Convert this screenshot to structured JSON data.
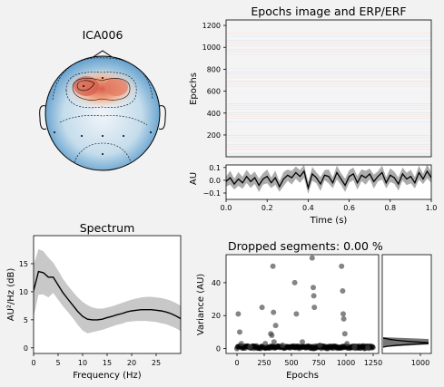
{
  "background": "#f2f2f2",
  "colors": {
    "mean_line": "#000000",
    "ci_band": "#9e9e9e",
    "scatter": "#555555",
    "axis": "#000000"
  },
  "topomap": {
    "title": "ICA006",
    "colormap": "RdBu_r"
  },
  "chart_data": [
    {
      "type": "heatmap",
      "panel": "epochs_image",
      "title": "Epochs image and ERP/ERF",
      "ylabel": "Epochs",
      "yticks": [
        200,
        400,
        600,
        800,
        1000,
        1200
      ],
      "ylim": [
        1,
        1250
      ]
    },
    {
      "type": "line",
      "panel": "erp",
      "xlabel": "Time (s)",
      "ylabel": "AU",
      "xlim": [
        0.0,
        1.0
      ],
      "xticks": [
        "0.0",
        "0.2",
        "0.4",
        "0.6",
        "0.8",
        "1.0"
      ],
      "ylim": [
        -0.15,
        0.12
      ],
      "yticks": [
        "0.1",
        "0.0",
        "−0.1"
      ],
      "ytick_values": [
        0.1,
        0.0,
        -0.1
      ],
      "x": [
        0.0,
        0.02,
        0.04,
        0.06,
        0.08,
        0.1,
        0.12,
        0.14,
        0.16,
        0.18,
        0.2,
        0.22,
        0.24,
        0.26,
        0.28,
        0.3,
        0.32,
        0.34,
        0.36,
        0.38,
        0.4,
        0.42,
        0.44,
        0.46,
        0.48,
        0.5,
        0.52,
        0.54,
        0.56,
        0.58,
        0.6,
        0.62,
        0.64,
        0.66,
        0.68,
        0.7,
        0.72,
        0.74,
        0.76,
        0.78,
        0.8,
        0.82,
        0.84,
        0.86,
        0.88,
        0.9,
        0.92,
        0.94,
        0.96,
        0.98,
        1.0
      ],
      "mean": [
        -0.01,
        0.02,
        -0.03,
        0.01,
        -0.02,
        0.03,
        -0.01,
        0.02,
        -0.04,
        0.01,
        0.03,
        -0.02,
        0.02,
        -0.05,
        0.01,
        0.04,
        0.02,
        0.06,
        0.03,
        0.07,
        -0.06,
        0.05,
        0.02,
        -0.03,
        0.04,
        0.03,
        -0.02,
        0.06,
        0.01,
        -0.04,
        0.03,
        0.05,
        -0.02,
        0.04,
        0.02,
        0.05,
        -0.01,
        0.03,
        0.06,
        -0.02,
        0.04,
        0.02,
        -0.03,
        0.05,
        0.01,
        0.03,
        -0.02,
        0.06,
        0.01,
        0.07,
        0.02
      ],
      "ci_halfwidth": 0.055
    },
    {
      "type": "area",
      "panel": "spectrum",
      "title": "Spectrum",
      "xlabel": "Frequency (Hz)",
      "ylabel": "AU²/Hz (dB)",
      "xlim": [
        0,
        30
      ],
      "xticks": [
        0,
        5,
        10,
        15,
        20,
        25
      ],
      "ylim": [
        -1,
        20
      ],
      "yticks": [
        0,
        5,
        10,
        15
      ],
      "x": [
        0,
        1,
        2,
        3,
        4,
        5,
        6,
        7,
        8,
        9,
        10,
        11,
        12,
        13,
        14,
        15,
        16,
        17,
        18,
        19,
        20,
        21,
        22,
        23,
        24,
        25,
        26,
        27,
        28,
        29,
        30
      ],
      "mean": [
        10.2,
        13.6,
        13.4,
        12.6,
        12.6,
        11.2,
        9.8,
        8.7,
        7.6,
        6.5,
        5.6,
        5.1,
        5.0,
        5.0,
        5.1,
        5.4,
        5.6,
        5.9,
        6.1,
        6.4,
        6.6,
        6.7,
        6.8,
        6.8,
        6.8,
        6.7,
        6.6,
        6.4,
        6.1,
        5.7,
        5.2
      ],
      "upper": [
        14.8,
        17.6,
        17.2,
        16.1,
        15.2,
        13.8,
        12.3,
        11.1,
        10.0,
        9.0,
        8.2,
        7.6,
        7.2,
        7.0,
        7.0,
        7.2,
        7.4,
        7.7,
        8.0,
        8.3,
        8.6,
        8.8,
        9.0,
        9.1,
        9.1,
        9.0,
        8.9,
        8.7,
        8.4,
        8.0,
        7.5
      ],
      "lower": [
        5.5,
        9.5,
        9.5,
        9.0,
        9.8,
        8.6,
        7.4,
        6.4,
        5.3,
        4.1,
        3.1,
        2.6,
        2.8,
        3.0,
        3.2,
        3.5,
        3.8,
        4.1,
        4.3,
        4.6,
        4.7,
        4.8,
        4.8,
        4.8,
        4.7,
        4.6,
        4.4,
        4.2,
        3.9,
        3.5,
        3.0
      ]
    },
    {
      "type": "scatter",
      "panel": "dropped_segments",
      "title": "Dropped segments: 0.00 %",
      "xlabel": "Epochs",
      "ylabel": "Variance (AU)",
      "xlim": [
        -100,
        1300
      ],
      "xticks": [
        0,
        250,
        500,
        750,
        1000,
        1250
      ],
      "ylim": [
        -3,
        57
      ],
      "yticks": [
        0,
        20,
        40
      ],
      "outliers": [
        [
          12,
          21
        ],
        [
          25,
          10
        ],
        [
          40,
          3
        ],
        [
          120,
          1
        ],
        [
          230,
          25
        ],
        [
          260,
          3
        ],
        [
          310,
          9
        ],
        [
          320,
          8
        ],
        [
          330,
          50
        ],
        [
          335,
          22
        ],
        [
          340,
          4
        ],
        [
          355,
          14
        ],
        [
          420,
          2
        ],
        [
          530,
          40
        ],
        [
          545,
          21
        ],
        [
          600,
          4
        ],
        [
          690,
          55
        ],
        [
          700,
          37
        ],
        [
          705,
          32
        ],
        [
          710,
          25
        ],
        [
          760,
          2
        ],
        [
          960,
          50
        ],
        [
          970,
          35
        ],
        [
          975,
          21
        ],
        [
          980,
          18
        ],
        [
          990,
          9
        ],
        [
          1010,
          3
        ],
        [
          1080,
          1
        ],
        [
          1200,
          0.5
        ]
      ],
      "baseline_n": 1250
    },
    {
      "type": "area",
      "panel": "variance_histogram",
      "xticks": [
        1000
      ],
      "xlim": [
        -50,
        1300
      ]
    }
  ]
}
